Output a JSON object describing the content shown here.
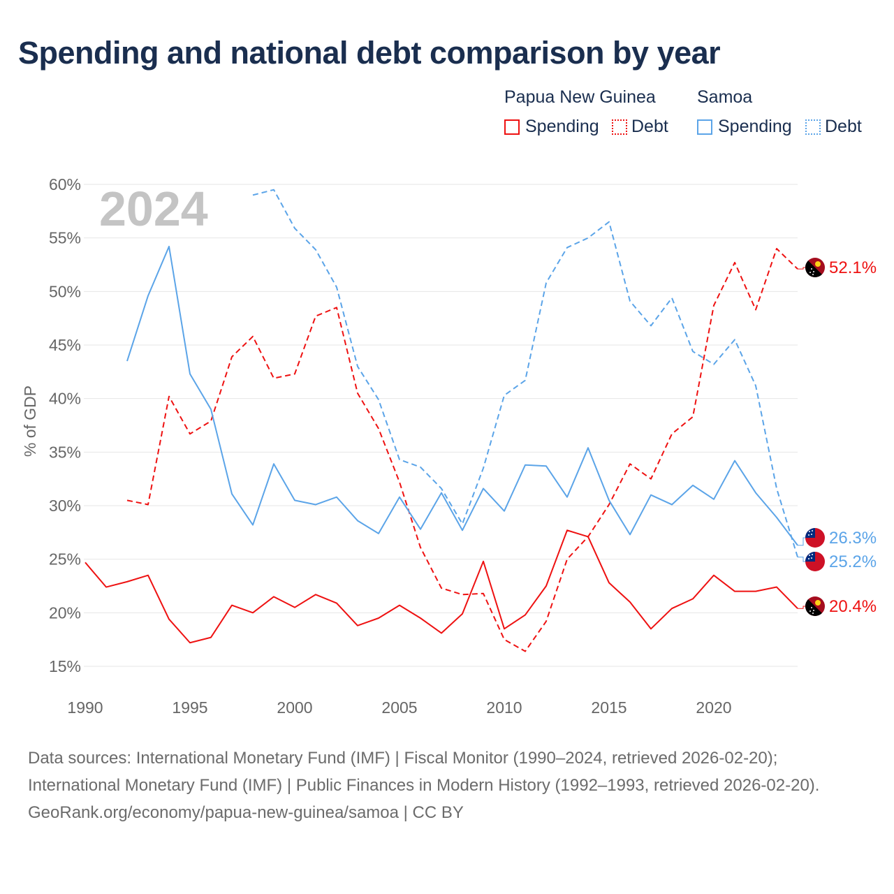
{
  "title": "Spending and national debt comparison by year",
  "legend": {
    "groups": [
      {
        "name": "Papua New Guinea",
        "color": "#ee1111",
        "items": [
          "Spending",
          "Debt"
        ]
      },
      {
        "name": "Samoa",
        "color": "#5ba4e8",
        "items": [
          "Spending",
          "Debt"
        ]
      }
    ]
  },
  "chart_data": {
    "type": "line",
    "title": "Spending and national debt comparison by year",
    "xlabel": "",
    "ylabel": "% of GDP",
    "year_watermark": "2024",
    "xlim": [
      1990,
      2024
    ],
    "ylim": [
      15,
      60
    ],
    "x_ticks": [
      "1990",
      "1995",
      "2000",
      "2005",
      "2010",
      "2015",
      "2020"
    ],
    "y_ticks": [
      "15%",
      "20%",
      "25%",
      "30%",
      "35%",
      "40%",
      "45%",
      "50%",
      "55%",
      "60%"
    ],
    "grid": true,
    "series": [
      {
        "name": "Papua New Guinea Spending",
        "color": "#ee1111",
        "dash": false,
        "start": 1990,
        "end_label": "20.4%",
        "flag": "png",
        "values": [
          24.7,
          22.4,
          22.9,
          23.5,
          19.4,
          17.2,
          17.7,
          20.7,
          20.0,
          21.5,
          20.5,
          21.7,
          20.9,
          18.8,
          19.5,
          20.7,
          19.5,
          18.1,
          19.9,
          24.8,
          18.5,
          19.8,
          22.5,
          27.7,
          27.1,
          22.8,
          21.0,
          18.5,
          20.4,
          21.3,
          23.5,
          22.0,
          22.0,
          22.4,
          20.4
        ]
      },
      {
        "name": "Papua New Guinea Debt",
        "color": "#ee1111",
        "dash": true,
        "start": 1992,
        "end_label": "52.1%",
        "flag": "png",
        "values": [
          30.5,
          30.1,
          40.2,
          36.7,
          37.9,
          43.9,
          45.8,
          41.9,
          42.3,
          47.7,
          48.5,
          40.5,
          37.2,
          32.2,
          26.1,
          22.3,
          21.7,
          21.8,
          17.5,
          16.4,
          19.2,
          25.0,
          27.1,
          30.1,
          33.9,
          32.5,
          36.7,
          38.3,
          48.7,
          52.7,
          48.3,
          54.0,
          52.1
        ]
      },
      {
        "name": "Samoa Spending",
        "color": "#5ba4e8",
        "dash": false,
        "start": 1992,
        "end_label": "26.3%",
        "flag": "samoa",
        "values": [
          43.5,
          49.6,
          54.2,
          42.3,
          39.0,
          31.1,
          28.2,
          33.9,
          30.5,
          30.1,
          30.8,
          28.6,
          27.4,
          30.8,
          27.8,
          31.2,
          27.7,
          31.6,
          29.5,
          33.8,
          33.7,
          30.8,
          35.4,
          30.5,
          27.3,
          31.0,
          30.1,
          31.9,
          30.6,
          34.2,
          31.2,
          28.9,
          26.3
        ]
      },
      {
        "name": "Samoa Debt",
        "color": "#5ba4e8",
        "dash": true,
        "start": 1998,
        "end_label": "25.2%",
        "flag": "samoa",
        "values": [
          59.0,
          59.5,
          55.9,
          53.9,
          50.4,
          43.0,
          39.9,
          34.3,
          33.6,
          31.6,
          28.3,
          33.5,
          40.3,
          41.7,
          50.8,
          54.1,
          55.0,
          56.5,
          49.1,
          46.8,
          49.4,
          44.4,
          43.2,
          45.5,
          41.2,
          31.6,
          25.2
        ]
      }
    ]
  },
  "footer": {
    "sources": "Data sources: International Monetary Fund (IMF) | Fiscal Monitor (1990–2024, retrieved 2026-02-20); International Monetary Fund (IMF) | Public Finances in Modern History (1992–1993, retrieved 2026-02-20).",
    "credit": "GeoRank.org/economy/papua-new-guinea/samoa | CC BY"
  }
}
